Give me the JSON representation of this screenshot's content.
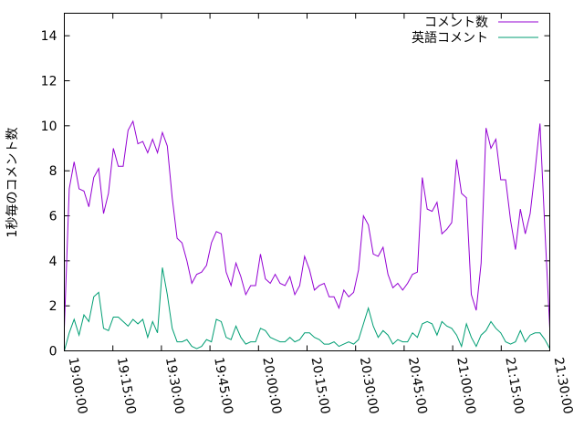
{
  "chart_data": {
    "type": "line",
    "title": "",
    "xlabel": "",
    "ylabel": "1秒毎のコメント数",
    "x_start": "19:00:00",
    "x_end": "21:30:00",
    "x_ticks": [
      "19:00:00",
      "19:15:00",
      "19:30:00",
      "19:45:00",
      "20:00:00",
      "20:15:00",
      "20:30:00",
      "20:45:00",
      "21:00:00",
      "21:15:00",
      "21:30:00"
    ],
    "ylim": [
      0,
      15
    ],
    "y_ticks": [
      0,
      2,
      4,
      6,
      8,
      10,
      12,
      14
    ],
    "grid": false,
    "legend_position": "top-right",
    "series": [
      {
        "name": "コメント数",
        "color": "#9400d3",
        "values": [
          1.0,
          7.2,
          8.4,
          7.2,
          7.1,
          6.4,
          7.7,
          8.1,
          6.1,
          7.0,
          9.0,
          8.2,
          8.2,
          9.8,
          10.2,
          9.2,
          9.3,
          8.8,
          9.4,
          8.8,
          9.7,
          9.1,
          6.8,
          5.0,
          4.8,
          4.0,
          3.0,
          3.4,
          3.5,
          3.8,
          4.8,
          5.3,
          5.2,
          3.5,
          2.9,
          3.9,
          3.3,
          2.5,
          2.9,
          2.9,
          4.3,
          3.2,
          3.0,
          3.4,
          3.0,
          2.9,
          3.3,
          2.5,
          2.9,
          4.2,
          3.6,
          2.7,
          2.9,
          3.0,
          2.4,
          2.4,
          1.9,
          2.7,
          2.4,
          2.6,
          3.6,
          6.0,
          5.6,
          4.3,
          4.2,
          4.6,
          3.4,
          2.8,
          3.0,
          2.7,
          3.0,
          3.4,
          3.5,
          7.7,
          6.3,
          6.2,
          6.6,
          5.2,
          5.4,
          5.7,
          8.5,
          7.0,
          6.8,
          2.5,
          1.8,
          3.9,
          9.9,
          9.0,
          9.4,
          7.6,
          7.6,
          5.8,
          4.5,
          6.3,
          5.2,
          6.1,
          8.0,
          10.1,
          5.4,
          1.0
        ]
      },
      {
        "name": "英語コメント",
        "color": "#009e73",
        "values": [
          0.0,
          0.8,
          1.4,
          0.7,
          1.6,
          1.3,
          2.4,
          2.6,
          1.0,
          0.9,
          1.5,
          1.5,
          1.3,
          1.1,
          1.4,
          1.2,
          1.4,
          0.6,
          1.3,
          0.8,
          3.7,
          2.5,
          1.0,
          0.4,
          0.4,
          0.5,
          0.2,
          0.1,
          0.2,
          0.5,
          0.4,
          1.4,
          1.3,
          0.6,
          0.5,
          1.1,
          0.6,
          0.3,
          0.4,
          0.4,
          1.0,
          0.9,
          0.6,
          0.5,
          0.4,
          0.4,
          0.6,
          0.4,
          0.5,
          0.8,
          0.8,
          0.6,
          0.5,
          0.3,
          0.3,
          0.4,
          0.2,
          0.3,
          0.4,
          0.3,
          0.5,
          1.2,
          1.9,
          1.1,
          0.6,
          0.9,
          0.7,
          0.3,
          0.5,
          0.4,
          0.4,
          0.8,
          0.6,
          1.2,
          1.3,
          1.2,
          0.7,
          1.3,
          1.1,
          1.0,
          0.7,
          0.2,
          1.2,
          0.6,
          0.2,
          0.7,
          0.9,
          1.3,
          1.0,
          0.8,
          0.4,
          0.3,
          0.4,
          0.9,
          0.4,
          0.7,
          0.8,
          0.8,
          0.5,
          0.1
        ]
      }
    ]
  }
}
